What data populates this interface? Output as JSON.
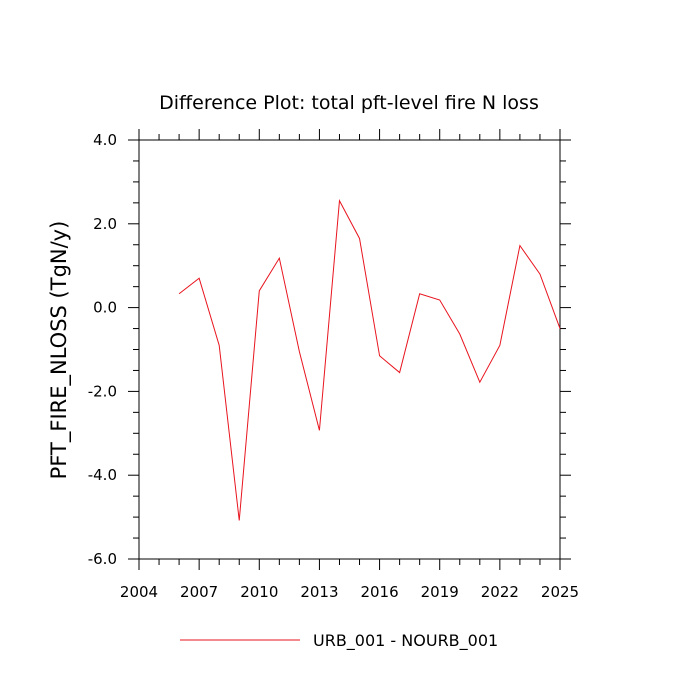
{
  "chart_data": {
    "type": "line",
    "title": "Difference Plot: total pft-level fire N loss",
    "xlabel": "",
    "ylabel": "PFT_FIRE_NLOSS  (TgN/y)",
    "xlim": [
      2004,
      2025
    ],
    "ylim": [
      -6.0,
      4.0
    ],
    "x_ticks": [
      2004,
      2007,
      2010,
      2013,
      2016,
      2019,
      2022,
      2025
    ],
    "x_tick_labels": [
      "2004",
      "2007",
      "2010",
      "2013",
      "2016",
      "2019",
      "2022",
      "2025"
    ],
    "y_ticks": [
      -6.0,
      -4.0,
      -2.0,
      0.0,
      2.0,
      4.0
    ],
    "y_tick_labels": [
      "-6.0",
      "-4.0",
      "-2.0",
      "0.0",
      "2.0",
      "4.0"
    ],
    "grid": false,
    "legend_position": "bottom-center",
    "series": [
      {
        "name": "URB_001 - NOURB_001",
        "color": "#e8141e",
        "x": [
          2006,
          2007,
          2008,
          2009,
          2010,
          2011,
          2012,
          2013,
          2014,
          2015,
          2016,
          2017,
          2018,
          2019,
          2020,
          2021,
          2022,
          2023,
          2024,
          2025
        ],
        "y": [
          0.33,
          0.7,
          -0.9,
          -5.08,
          0.4,
          1.18,
          -1.05,
          -2.93,
          2.55,
          1.65,
          -1.15,
          -1.55,
          0.33,
          0.18,
          -0.63,
          -1.78,
          -0.9,
          1.48,
          0.8,
          -0.5
        ]
      }
    ]
  }
}
